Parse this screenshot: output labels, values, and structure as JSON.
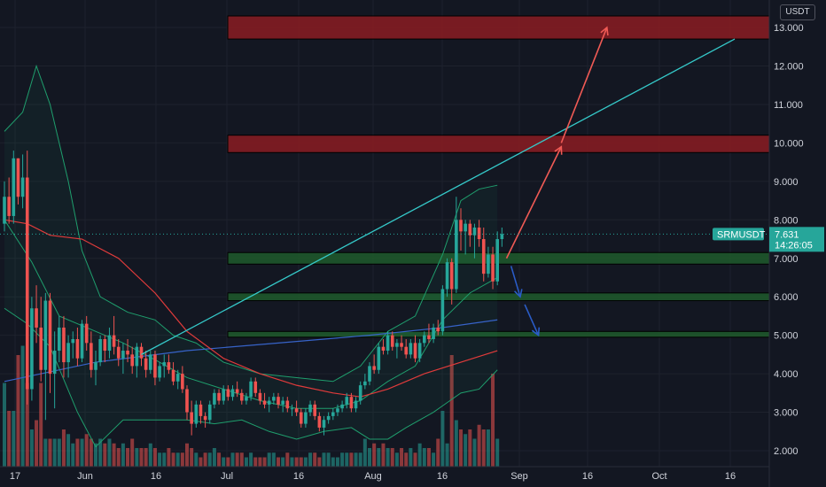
{
  "header": {
    "currency": "USDT"
  },
  "price_badge": {
    "symbol": "SRMUSDT",
    "price": "7.631",
    "countdown": "14:26:05"
  },
  "colors": {
    "background": "#131722",
    "grid": "#1e222d",
    "up": "#26a69a",
    "down": "#ef5350",
    "zone_resistance": "#8b1c22",
    "zone_support": "#1e5b2b",
    "trendline": "#35c9c9",
    "arrow_up": "#f05a55",
    "arrow_down": "#2a5cc7",
    "ma_red": "#e03b3b",
    "ma_blue": "#3763c9",
    "bollinger": "#1f9e6d"
  },
  "chart_data": {
    "type": "candlestick",
    "symbol": "SRMUSDT",
    "y_ticks": [
      "2.000",
      "3.000",
      "4.000",
      "5.000",
      "6.000",
      "7.000",
      "8.000",
      "9.000",
      "10.000",
      "11.000",
      "12.000",
      "13.000"
    ],
    "x_ticks": [
      "17",
      "Jun",
      "16",
      "Jul",
      "16",
      "Aug",
      "16",
      "Sep",
      "16",
      "Oct",
      "16"
    ],
    "ylim": [
      1.7,
      13.5
    ],
    "last_price": 7.631,
    "zones": [
      {
        "kind": "resistance",
        "low": 12.7,
        "high": 13.3
      },
      {
        "kind": "resistance",
        "low": 9.75,
        "high": 10.2
      },
      {
        "kind": "support",
        "low": 6.85,
        "high": 7.15
      },
      {
        "kind": "support",
        "low": 5.9,
        "high": 6.1
      },
      {
        "kind": "support",
        "low": 4.95,
        "high": 5.1
      }
    ],
    "candles": [
      [
        7.9,
        9.0,
        7.7,
        8.6
      ],
      [
        8.6,
        9.1,
        7.9,
        8.1
      ],
      [
        8.1,
        9.8,
        7.9,
        9.6
      ],
      [
        9.6,
        9.6,
        8.4,
        8.6
      ],
      [
        8.6,
        9.7,
        8.3,
        9.1
      ],
      [
        9.1,
        9.8,
        3.2,
        3.6
      ],
      [
        3.6,
        6.0,
        3.3,
        5.7
      ],
      [
        5.7,
        6.3,
        4.8,
        5.2
      ],
      [
        5.2,
        6.0,
        3.8,
        4.1
      ],
      [
        4.1,
        6.1,
        2.8,
        5.9
      ],
      [
        5.9,
        6.1,
        3.5,
        4.0
      ],
      [
        4.0,
        5.1,
        3.1,
        4.6
      ],
      [
        4.6,
        5.5,
        4.3,
        5.2
      ],
      [
        5.2,
        5.5,
        3.9,
        4.3
      ],
      [
        4.3,
        5.0,
        3.9,
        4.8
      ],
      [
        4.8,
        5.1,
        4.4,
        4.9
      ],
      [
        4.9,
        5.2,
        4.2,
        4.4
      ],
      [
        4.4,
        5.4,
        4.3,
        5.3
      ],
      [
        5.3,
        5.5,
        4.6,
        4.8
      ],
      [
        4.8,
        5.1,
        3.9,
        4.1
      ],
      [
        4.1,
        4.6,
        3.7,
        4.3
      ],
      [
        4.3,
        5.0,
        4.2,
        4.9
      ],
      [
        4.9,
        5.0,
        4.3,
        4.6
      ],
      [
        4.6,
        5.2,
        4.4,
        5.0
      ],
      [
        5.0,
        5.5,
        4.5,
        4.7
      ],
      [
        4.7,
        4.9,
        4.2,
        4.4
      ],
      [
        4.4,
        4.8,
        4.0,
        4.6
      ],
      [
        4.6,
        4.9,
        4.3,
        4.5
      ],
      [
        4.5,
        4.7,
        4.0,
        4.2
      ],
      [
        4.2,
        4.8,
        3.9,
        4.7
      ],
      [
        4.7,
        4.8,
        4.2,
        4.4
      ],
      [
        4.4,
        4.6,
        3.9,
        4.1
      ],
      [
        4.1,
        4.6,
        4.0,
        4.5
      ],
      [
        4.5,
        4.6,
        3.7,
        3.9
      ],
      [
        3.9,
        4.3,
        3.8,
        4.2
      ],
      [
        4.2,
        4.5,
        3.9,
        4.3
      ],
      [
        4.3,
        4.5,
        4.0,
        4.1
      ],
      [
        4.1,
        4.3,
        3.7,
        3.8
      ],
      [
        3.8,
        4.1,
        3.6,
        4.0
      ],
      [
        4.0,
        4.2,
        3.5,
        3.6
      ],
      [
        3.6,
        3.7,
        2.8,
        3.0
      ],
      [
        3.0,
        3.3,
        2.4,
        2.7
      ],
      [
        2.7,
        3.3,
        2.6,
        3.2
      ],
      [
        3.2,
        3.3,
        2.7,
        2.9
      ],
      [
        2.9,
        3.0,
        2.6,
        2.8
      ],
      [
        2.8,
        3.3,
        2.7,
        3.2
      ],
      [
        3.2,
        3.6,
        3.1,
        3.5
      ],
      [
        3.5,
        3.6,
        3.2,
        3.3
      ],
      [
        3.3,
        3.7,
        3.2,
        3.6
      ],
      [
        3.6,
        3.7,
        3.3,
        3.4
      ],
      [
        3.4,
        3.7,
        3.3,
        3.6
      ],
      [
        3.6,
        3.8,
        3.4,
        3.5
      ],
      [
        3.5,
        3.6,
        3.2,
        3.3
      ],
      [
        3.3,
        3.5,
        3.2,
        3.4
      ],
      [
        3.4,
        3.9,
        3.3,
        3.8
      ],
      [
        3.8,
        3.9,
        3.4,
        3.5
      ],
      [
        3.5,
        3.6,
        3.2,
        3.3
      ],
      [
        3.3,
        3.5,
        3.1,
        3.2
      ],
      [
        3.2,
        3.4,
        3.0,
        3.3
      ],
      [
        3.3,
        3.5,
        3.2,
        3.4
      ],
      [
        3.4,
        3.5,
        3.1,
        3.2
      ],
      [
        3.2,
        3.4,
        3.0,
        3.3
      ],
      [
        3.3,
        3.4,
        3.0,
        3.1
      ],
      [
        3.1,
        3.2,
        2.9,
        3.1
      ],
      [
        3.1,
        3.3,
        2.9,
        3.0
      ],
      [
        3.0,
        3.1,
        2.6,
        2.7
      ],
      [
        2.7,
        3.1,
        2.6,
        3.0
      ],
      [
        3.0,
        3.3,
        2.9,
        3.2
      ],
      [
        3.2,
        3.3,
        2.8,
        2.9
      ],
      [
        2.9,
        3.0,
        2.5,
        2.6
      ],
      [
        2.6,
        2.9,
        2.4,
        2.8
      ],
      [
        2.8,
        3.0,
        2.7,
        2.9
      ],
      [
        2.9,
        3.1,
        2.8,
        3.0
      ],
      [
        3.0,
        3.2,
        2.9,
        3.1
      ],
      [
        3.1,
        3.3,
        3.0,
        3.2
      ],
      [
        3.2,
        3.5,
        3.1,
        3.4
      ],
      [
        3.4,
        3.5,
        3.0,
        3.1
      ],
      [
        3.1,
        3.4,
        3.0,
        3.3
      ],
      [
        3.3,
        3.8,
        3.2,
        3.7
      ],
      [
        3.7,
        4.0,
        3.6,
        3.8
      ],
      [
        3.8,
        4.3,
        3.7,
        4.2
      ],
      [
        4.2,
        4.5,
        4.0,
        4.1
      ],
      [
        4.1,
        4.8,
        4.0,
        4.7
      ],
      [
        4.7,
        4.9,
        4.5,
        4.6
      ],
      [
        4.6,
        5.1,
        4.5,
        5.0
      ],
      [
        5.0,
        5.1,
        4.6,
        4.7
      ],
      [
        4.7,
        4.9,
        4.4,
        4.8
      ],
      [
        4.8,
        5.0,
        4.6,
        4.7
      ],
      [
        4.7,
        4.9,
        4.4,
        4.5
      ],
      [
        4.5,
        4.9,
        4.4,
        4.8
      ],
      [
        4.8,
        5.0,
        4.3,
        4.4
      ],
      [
        4.4,
        4.9,
        4.3,
        4.8
      ],
      [
        4.8,
        5.1,
        4.7,
        5.0
      ],
      [
        5.0,
        5.3,
        4.8,
        4.9
      ],
      [
        4.9,
        5.3,
        4.8,
        5.2
      ],
      [
        5.2,
        5.4,
        5.0,
        5.1
      ],
      [
        5.1,
        6.3,
        5.0,
        6.2
      ],
      [
        6.2,
        7.0,
        6.0,
        6.9
      ],
      [
        6.9,
        7.0,
        5.8,
        6.2
      ],
      [
        6.2,
        8.6,
        6.1,
        8.0
      ],
      [
        8.0,
        8.3,
        7.2,
        7.7
      ],
      [
        7.7,
        8.0,
        7.1,
        7.9
      ],
      [
        7.9,
        8.0,
        7.3,
        7.6
      ],
      [
        7.6,
        7.9,
        7.0,
        7.8
      ],
      [
        7.8,
        8.0,
        7.3,
        7.5
      ],
      [
        7.5,
        7.8,
        6.4,
        6.6
      ],
      [
        6.6,
        7.3,
        6.5,
        7.1
      ],
      [
        7.1,
        7.3,
        6.2,
        6.4
      ],
      [
        6.4,
        7.7,
        6.3,
        7.5
      ],
      [
        7.5,
        7.8,
        7.3,
        7.631
      ]
    ],
    "volume": [
      0.9,
      0.6,
      0.6,
      1.2,
      1.3,
      0.9,
      0.4,
      0.5,
      0.9,
      0.3,
      0.3,
      0.3,
      0.3,
      0.4,
      0.35,
      0.25,
      0.3,
      0.3,
      0.35,
      0.3,
      0.25,
      0.3,
      0.25,
      0.3,
      0.25,
      0.2,
      0.25,
      0.2,
      0.3,
      0.2,
      0.2,
      0.2,
      0.25,
      0.2,
      0.15,
      0.15,
      0.2,
      0.15,
      0.15,
      0.15,
      0.25,
      0.2,
      0.15,
      0.1,
      0.15,
      0.15,
      0.2,
      0.15,
      0.1,
      0.1,
      0.15,
      0.15,
      0.15,
      0.1,
      0.15,
      0.1,
      0.1,
      0.1,
      0.15,
      0.15,
      0.1,
      0.1,
      0.15,
      0.1,
      0.1,
      0.1,
      0.1,
      0.15,
      0.15,
      0.1,
      0.15,
      0.15,
      0.1,
      0.1,
      0.15,
      0.15,
      0.15,
      0.15,
      0.15,
      0.3,
      0.2,
      0.25,
      0.2,
      0.25,
      0.2,
      0.2,
      0.15,
      0.2,
      0.15,
      0.2,
      0.15,
      0.25,
      0.2,
      0.2,
      0.15,
      0.3,
      0.6,
      0.25,
      1.2,
      0.5,
      0.4,
      0.35,
      0.4,
      0.3,
      0.45,
      0.4,
      0.4,
      1.0,
      0.3
    ],
    "overlays": {
      "ma_red": [
        [
          0,
          8.0
        ],
        [
          5,
          7.9
        ],
        [
          10,
          7.6
        ],
        [
          17,
          7.5
        ],
        [
          25,
          7.0
        ],
        [
          33,
          6.1
        ],
        [
          40,
          5.1
        ],
        [
          48,
          4.4
        ],
        [
          56,
          4.0
        ],
        [
          64,
          3.7
        ],
        [
          72,
          3.5
        ],
        [
          78,
          3.4
        ],
        [
          84,
          3.6
        ],
        [
          92,
          4.0
        ],
        [
          100,
          4.3
        ],
        [
          108,
          4.6
        ]
      ],
      "ma_blue": [
        [
          0,
          3.8
        ],
        [
          20,
          4.3
        ],
        [
          40,
          4.6
        ],
        [
          60,
          4.8
        ],
        [
          80,
          5.0
        ],
        [
          96,
          5.2
        ],
        [
          108,
          5.4
        ]
      ],
      "bb_upper": [
        [
          0,
          10.3
        ],
        [
          4,
          10.8
        ],
        [
          7,
          12.0
        ],
        [
          10,
          11.0
        ],
        [
          14,
          9.0
        ],
        [
          17,
          7.2
        ],
        [
          21,
          6.0
        ],
        [
          27,
          5.6
        ],
        [
          33,
          5.4
        ],
        [
          37,
          5.0
        ],
        [
          42,
          4.8
        ],
        [
          48,
          4.3
        ],
        [
          56,
          4.0
        ],
        [
          64,
          3.9
        ],
        [
          72,
          3.8
        ],
        [
          78,
          4.2
        ],
        [
          84,
          5.1
        ],
        [
          90,
          5.5
        ],
        [
          96,
          7.1
        ],
        [
          100,
          8.5
        ],
        [
          104,
          8.8
        ],
        [
          108,
          8.9
        ]
      ],
      "bb_mid": [
        [
          0,
          8.0
        ],
        [
          6,
          6.9
        ],
        [
          12,
          5.5
        ],
        [
          18,
          5.2
        ],
        [
          26,
          4.8
        ],
        [
          34,
          4.3
        ],
        [
          40,
          3.9
        ],
        [
          48,
          3.6
        ],
        [
          56,
          3.3
        ],
        [
          64,
          3.1
        ],
        [
          72,
          3.1
        ],
        [
          78,
          3.3
        ],
        [
          84,
          3.8
        ],
        [
          90,
          4.2
        ],
        [
          96,
          5.4
        ],
        [
          102,
          6.1
        ],
        [
          108,
          6.5
        ]
      ],
      "bb_lower": [
        [
          0,
          5.7
        ],
        [
          5,
          5.3
        ],
        [
          10,
          4.7
        ],
        [
          16,
          3.0
        ],
        [
          20,
          2.1
        ],
        [
          26,
          2.8
        ],
        [
          34,
          2.8
        ],
        [
          40,
          2.8
        ],
        [
          46,
          2.7
        ],
        [
          52,
          2.8
        ],
        [
          58,
          2.5
        ],
        [
          64,
          2.3
        ],
        [
          70,
          2.5
        ],
        [
          76,
          2.6
        ],
        [
          80,
          2.3
        ],
        [
          84,
          2.3
        ],
        [
          88,
          2.6
        ],
        [
          94,
          3.0
        ],
        [
          100,
          3.5
        ],
        [
          104,
          3.6
        ],
        [
          108,
          4.1
        ]
      ]
    },
    "trendline": {
      "from": [
        30,
        4.5
      ],
      "to": [
        160,
        12.7
      ]
    },
    "arrows": [
      {
        "color": "up",
        "points": [
          [
            110,
            7.0
          ],
          [
            122,
            9.9
          ]
        ]
      },
      {
        "color": "up",
        "points": [
          [
            122,
            10.0
          ],
          [
            132,
            13.0
          ]
        ]
      },
      {
        "color": "down",
        "points": [
          [
            111,
            6.8
          ],
          [
            113,
            6.0
          ]
        ]
      },
      {
        "color": "down",
        "points": [
          [
            114,
            5.8
          ],
          [
            117,
            5.0
          ]
        ]
      }
    ]
  }
}
